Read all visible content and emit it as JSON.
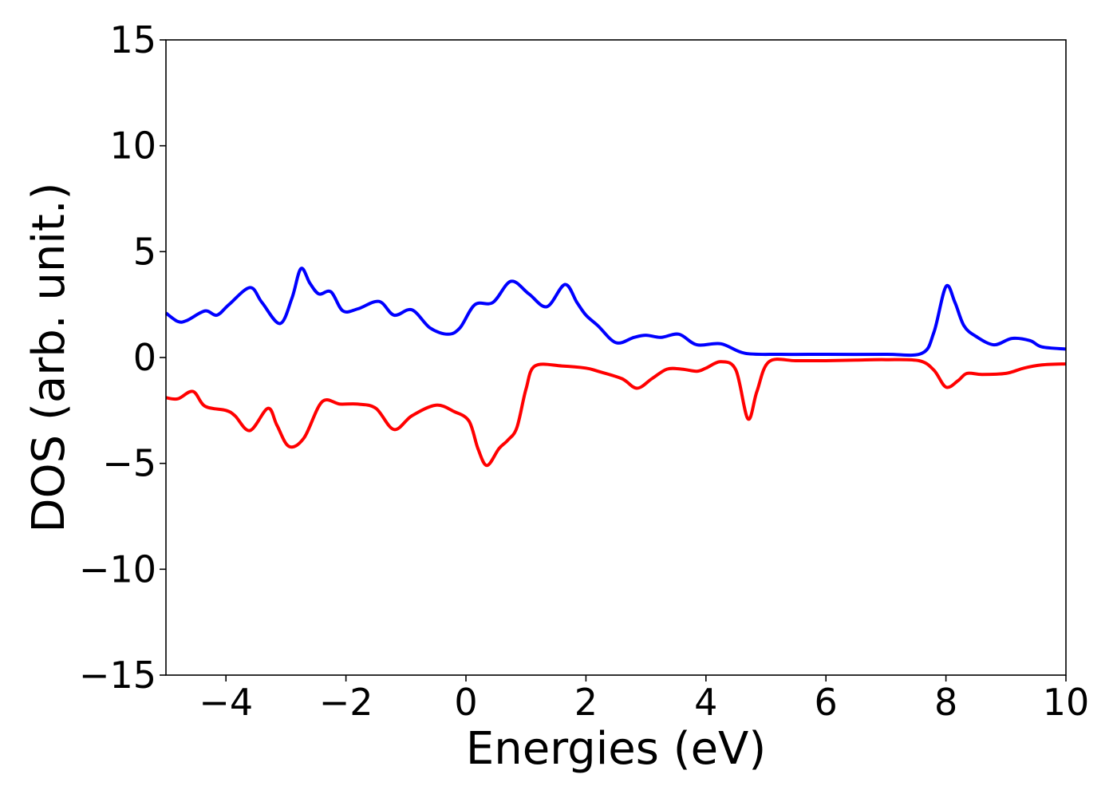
{
  "chart_data": {
    "type": "line",
    "title": "",
    "xlabel": "Energies (eV)",
    "ylabel": "DOS (arb. unit.)",
    "xlim": [
      -5,
      10
    ],
    "ylim": [
      -15,
      15
    ],
    "x_ticks": [
      -4,
      -2,
      0,
      2,
      4,
      6,
      8,
      10
    ],
    "y_ticks": [
      -15,
      -10,
      -5,
      0,
      5,
      10,
      15
    ],
    "x_tick_labels": [
      "−4",
      "−2",
      "0",
      "2",
      "4",
      "6",
      "8",
      "10"
    ],
    "y_tick_labels": [
      "−15",
      "−10",
      "−5",
      "0",
      "5",
      "10",
      "15"
    ],
    "grid": false,
    "legend": "none",
    "series": [
      {
        "color": "#0000ff",
        "points": [
          [
            -5.0,
            2.1
          ],
          [
            -4.8,
            1.7
          ],
          [
            -4.65,
            1.75
          ],
          [
            -4.35,
            2.2
          ],
          [
            -4.15,
            2.0
          ],
          [
            -3.95,
            2.5
          ],
          [
            -3.6,
            3.3
          ],
          [
            -3.4,
            2.6
          ],
          [
            -3.1,
            1.6
          ],
          [
            -2.9,
            2.8
          ],
          [
            -2.75,
            4.2
          ],
          [
            -2.6,
            3.5
          ],
          [
            -2.45,
            3.0
          ],
          [
            -2.25,
            3.1
          ],
          [
            -2.05,
            2.2
          ],
          [
            -1.8,
            2.3
          ],
          [
            -1.45,
            2.65
          ],
          [
            -1.2,
            2.0
          ],
          [
            -0.9,
            2.25
          ],
          [
            -0.6,
            1.4
          ],
          [
            -0.3,
            1.1
          ],
          [
            -0.1,
            1.4
          ],
          [
            0.15,
            2.5
          ],
          [
            0.45,
            2.6
          ],
          [
            0.75,
            3.6
          ],
          [
            1.05,
            3.0
          ],
          [
            1.35,
            2.4
          ],
          [
            1.65,
            3.45
          ],
          [
            1.85,
            2.6
          ],
          [
            2.0,
            2.0
          ],
          [
            2.2,
            1.5
          ],
          [
            2.5,
            0.7
          ],
          [
            2.8,
            0.95
          ],
          [
            3.0,
            1.05
          ],
          [
            3.25,
            0.95
          ],
          [
            3.55,
            1.1
          ],
          [
            3.85,
            0.6
          ],
          [
            4.25,
            0.65
          ],
          [
            4.65,
            0.2
          ],
          [
            5.25,
            0.15
          ],
          [
            6.0,
            0.15
          ],
          [
            7.0,
            0.15
          ],
          [
            7.6,
            0.2
          ],
          [
            7.8,
            1.2
          ],
          [
            8.0,
            3.35
          ],
          [
            8.15,
            2.6
          ],
          [
            8.3,
            1.5
          ],
          [
            8.5,
            1.0
          ],
          [
            8.8,
            0.6
          ],
          [
            9.1,
            0.9
          ],
          [
            9.4,
            0.8
          ],
          [
            9.6,
            0.5
          ],
          [
            10.0,
            0.4
          ]
        ]
      },
      {
        "color": "#ff0000",
        "points": [
          [
            -5.0,
            -1.9
          ],
          [
            -4.8,
            -1.95
          ],
          [
            -4.55,
            -1.6
          ],
          [
            -4.35,
            -2.3
          ],
          [
            -4.0,
            -2.5
          ],
          [
            -3.85,
            -2.75
          ],
          [
            -3.6,
            -3.45
          ],
          [
            -3.3,
            -2.4
          ],
          [
            -3.15,
            -3.2
          ],
          [
            -2.95,
            -4.2
          ],
          [
            -2.7,
            -3.8
          ],
          [
            -2.4,
            -2.1
          ],
          [
            -2.1,
            -2.2
          ],
          [
            -1.8,
            -2.2
          ],
          [
            -1.5,
            -2.4
          ],
          [
            -1.2,
            -3.4
          ],
          [
            -0.9,
            -2.75
          ],
          [
            -0.5,
            -2.25
          ],
          [
            -0.2,
            -2.55
          ],
          [
            0.05,
            -3.0
          ],
          [
            0.2,
            -4.3
          ],
          [
            0.35,
            -5.1
          ],
          [
            0.55,
            -4.3
          ],
          [
            0.7,
            -3.9
          ],
          [
            0.85,
            -3.3
          ],
          [
            1.0,
            -1.5
          ],
          [
            1.15,
            -0.4
          ],
          [
            1.6,
            -0.4
          ],
          [
            2.0,
            -0.5
          ],
          [
            2.2,
            -0.65
          ],
          [
            2.6,
            -1.0
          ],
          [
            2.85,
            -1.45
          ],
          [
            3.1,
            -1.0
          ],
          [
            3.35,
            -0.55
          ],
          [
            3.6,
            -0.55
          ],
          [
            3.85,
            -0.65
          ],
          [
            4.0,
            -0.5
          ],
          [
            4.25,
            -0.2
          ],
          [
            4.5,
            -0.6
          ],
          [
            4.7,
            -2.9
          ],
          [
            4.85,
            -1.6
          ],
          [
            5.05,
            -0.2
          ],
          [
            5.5,
            -0.15
          ],
          [
            6.0,
            -0.15
          ],
          [
            6.5,
            -0.12
          ],
          [
            7.0,
            -0.1
          ],
          [
            7.55,
            -0.15
          ],
          [
            7.8,
            -0.6
          ],
          [
            8.0,
            -1.4
          ],
          [
            8.2,
            -1.1
          ],
          [
            8.35,
            -0.75
          ],
          [
            8.6,
            -0.8
          ],
          [
            9.0,
            -0.75
          ],
          [
            9.3,
            -0.5
          ],
          [
            9.6,
            -0.35
          ],
          [
            10.0,
            -0.3
          ]
        ]
      }
    ]
  }
}
